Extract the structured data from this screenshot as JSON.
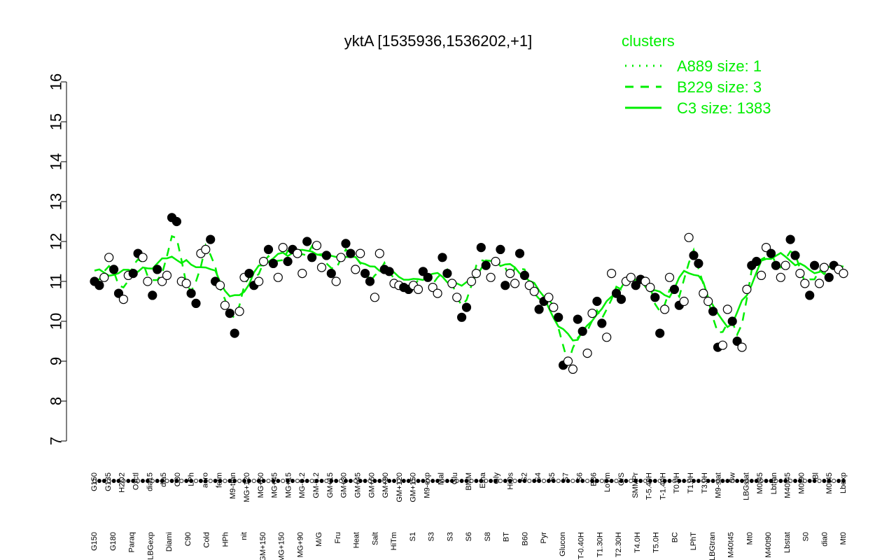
{
  "chart_data": {
    "type": "line",
    "title": "yktA [1535936,1536202,+1]",
    "ylim": [
      7,
      16
    ],
    "yticks": [
      7,
      8,
      9,
      10,
      11,
      12,
      13,
      14,
      15,
      16
    ],
    "grid": false,
    "legend": {
      "position": "top-right",
      "title": "clusters",
      "entries": [
        {
          "label": "A889 size: 1",
          "style": "dotted"
        },
        {
          "label": "B229 size: 3",
          "style": "dashed"
        },
        {
          "label": "C3 size: 1383",
          "style": "solid"
        }
      ]
    },
    "line_color": "#00ee00",
    "top_labels": [
      "G150",
      "G135",
      "H2O2",
      "Oxctl",
      "dia15",
      "dia5",
      "C30",
      "LPh",
      "aero",
      "ferm",
      "M9-tran",
      "MG+120",
      "MG+60",
      "MG+45",
      "MG+15",
      "MG-0.2",
      "GM-0.2",
      "GM+15",
      "GM+30",
      "GM+45",
      "GM+60",
      "GM+90",
      "GM+120",
      "GM+150",
      "M9-exp",
      "Mal",
      "Glu",
      "BMM",
      "Etha",
      "Gly",
      "HiOs",
      "S2",
      "S4",
      "S5",
      "S7",
      "S6",
      "B36",
      "LoTm",
      "G/S",
      "SMMPr",
      "T-5.40H",
      "T-1.40H",
      "T0.0H",
      "T1.0H",
      "T3.0H",
      "M9-stat",
      "Sw",
      "LBGstat",
      "M0t45",
      "Lbtran",
      "M40t45",
      "M0t90",
      "Bl",
      "M0t45",
      "Lbexp"
    ],
    "bottom_labels": [
      "G150",
      "G180",
      "Paraq",
      "LBGexp",
      "Diami",
      "C90",
      "Cold",
      "HPh",
      "nit",
      "GM+150",
      "MG+150",
      "MG+90",
      "M/G",
      "Fru",
      "Heat",
      "Salt",
      "HiTm",
      "S1",
      "S3",
      "S3",
      "S6",
      "S8",
      "BT",
      "B60",
      "Pyr",
      "Glucon",
      "T-0.40H",
      "T1.30H",
      "T2.30H",
      "T4.0H",
      "T5.0H",
      "BC",
      "LPhT",
      "LBGtran",
      "M40t45",
      "Mt0",
      "M40t90",
      "Lbstat",
      "S0",
      "dia0",
      "Mt0"
    ],
    "points": [
      {
        "x": 1,
        "y": 11.0
      },
      {
        "x": 2,
        "y": 10.9
      },
      {
        "x": 3,
        "y": 11.1
      },
      {
        "x": 4,
        "y": 11.6
      },
      {
        "x": 5,
        "y": 11.3
      },
      {
        "x": 6,
        "y": 10.7
      },
      {
        "x": 7,
        "y": 10.55
      },
      {
        "x": 8,
        "y": 11.15
      },
      {
        "x": 9,
        "y": 11.2
      },
      {
        "x": 10,
        "y": 11.7
      },
      {
        "x": 11,
        "y": 11.6
      },
      {
        "x": 12,
        "y": 11.0
      },
      {
        "x": 13,
        "y": 10.65
      },
      {
        "x": 14,
        "y": 11.3
      },
      {
        "x": 15,
        "y": 11.0
      },
      {
        "x": 16,
        "y": 11.15
      },
      {
        "x": 17,
        "y": 12.6
      },
      {
        "x": 18,
        "y": 12.5
      },
      {
        "x": 19,
        "y": 11.0
      },
      {
        "x": 20,
        "y": 10.95
      },
      {
        "x": 21,
        "y": 10.7
      },
      {
        "x": 22,
        "y": 10.45
      },
      {
        "x": 23,
        "y": 11.7
      },
      {
        "x": 24,
        "y": 11.8
      },
      {
        "x": 25,
        "y": 12.05
      },
      {
        "x": 26,
        "y": 11.0
      },
      {
        "x": 27,
        "y": 10.9
      },
      {
        "x": 28,
        "y": 10.4
      },
      {
        "x": 29,
        "y": 10.2
      },
      {
        "x": 30,
        "y": 9.7
      },
      {
        "x": 31,
        "y": 10.25
      },
      {
        "x": 32,
        "y": 11.1
      },
      {
        "x": 33,
        "y": 11.2
      },
      {
        "x": 34,
        "y": 10.9
      },
      {
        "x": 35,
        "y": 11.0
      },
      {
        "x": 36,
        "y": 11.5
      },
      {
        "x": 37,
        "y": 11.8
      },
      {
        "x": 38,
        "y": 11.45
      },
      {
        "x": 39,
        "y": 11.1
      },
      {
        "x": 40,
        "y": 11.85
      },
      {
        "x": 41,
        "y": 11.5
      },
      {
        "x": 42,
        "y": 11.8
      },
      {
        "x": 43,
        "y": 11.7
      },
      {
        "x": 44,
        "y": 11.2
      },
      {
        "x": 45,
        "y": 12.0
      },
      {
        "x": 46,
        "y": 11.6
      },
      {
        "x": 47,
        "y": 11.9
      },
      {
        "x": 48,
        "y": 11.35
      },
      {
        "x": 49,
        "y": 11.65
      },
      {
        "x": 50,
        "y": 11.2
      },
      {
        "x": 51,
        "y": 11.0
      },
      {
        "x": 52,
        "y": 11.6
      },
      {
        "x": 53,
        "y": 11.95
      },
      {
        "x": 54,
        "y": 11.7
      },
      {
        "x": 55,
        "y": 11.3
      },
      {
        "x": 56,
        "y": 11.7
      },
      {
        "x": 57,
        "y": 11.2
      },
      {
        "x": 58,
        "y": 11.0
      },
      {
        "x": 59,
        "y": 10.6
      },
      {
        "x": 60,
        "y": 11.7
      },
      {
        "x": 61,
        "y": 11.3
      },
      {
        "x": 62,
        "y": 11.25
      },
      {
        "x": 63,
        "y": 10.95
      },
      {
        "x": 64,
        "y": 10.9
      },
      {
        "x": 65,
        "y": 10.85
      },
      {
        "x": 66,
        "y": 10.8
      },
      {
        "x": 67,
        "y": 10.9
      },
      {
        "x": 68,
        "y": 10.8
      },
      {
        "x": 69,
        "y": 11.25
      },
      {
        "x": 70,
        "y": 11.1
      },
      {
        "x": 71,
        "y": 10.85
      },
      {
        "x": 72,
        "y": 10.7
      },
      {
        "x": 73,
        "y": 11.6
      },
      {
        "x": 74,
        "y": 11.2
      },
      {
        "x": 75,
        "y": 10.95
      },
      {
        "x": 76,
        "y": 10.6
      },
      {
        "x": 77,
        "y": 10.1
      },
      {
        "x": 78,
        "y": 10.35
      },
      {
        "x": 79,
        "y": 11.0
      },
      {
        "x": 80,
        "y": 11.2
      },
      {
        "x": 81,
        "y": 11.85
      },
      {
        "x": 82,
        "y": 11.4
      },
      {
        "x": 83,
        "y": 11.1
      },
      {
        "x": 84,
        "y": 11.5
      },
      {
        "x": 85,
        "y": 11.8
      },
      {
        "x": 86,
        "y": 10.9
      },
      {
        "x": 87,
        "y": 11.2
      },
      {
        "x": 88,
        "y": 10.95
      },
      {
        "x": 89,
        "y": 11.7
      },
      {
        "x": 90,
        "y": 11.15
      },
      {
        "x": 91,
        "y": 10.9
      },
      {
        "x": 92,
        "y": 10.75
      },
      {
        "x": 93,
        "y": 10.3
      },
      {
        "x": 94,
        "y": 10.5
      },
      {
        "x": 95,
        "y": 10.6
      },
      {
        "x": 96,
        "y": 10.35
      },
      {
        "x": 97,
        "y": 10.1
      },
      {
        "x": 98,
        "y": 8.9
      },
      {
        "x": 99,
        "y": 9.0
      },
      {
        "x": 100,
        "y": 8.8
      },
      {
        "x": 101,
        "y": 10.05
      },
      {
        "x": 102,
        "y": 9.75
      },
      {
        "x": 103,
        "y": 9.2
      },
      {
        "x": 104,
        "y": 10.2
      },
      {
        "x": 105,
        "y": 10.5
      },
      {
        "x": 106,
        "y": 9.95
      },
      {
        "x": 107,
        "y": 9.6
      },
      {
        "x": 108,
        "y": 11.2
      },
      {
        "x": 109,
        "y": 10.7
      },
      {
        "x": 110,
        "y": 10.55
      },
      {
        "x": 111,
        "y": 11.0
      },
      {
        "x": 112,
        "y": 11.1
      },
      {
        "x": 113,
        "y": 10.9
      },
      {
        "x": 114,
        "y": 11.05
      },
      {
        "x": 115,
        "y": 11.0
      },
      {
        "x": 116,
        "y": 10.85
      },
      {
        "x": 117,
        "y": 10.6
      },
      {
        "x": 118,
        "y": 9.7
      },
      {
        "x": 119,
        "y": 10.3
      },
      {
        "x": 120,
        "y": 11.1
      },
      {
        "x": 121,
        "y": 10.8
      },
      {
        "x": 122,
        "y": 10.4
      },
      {
        "x": 123,
        "y": 10.5
      },
      {
        "x": 124,
        "y": 12.1
      },
      {
        "x": 125,
        "y": 11.65
      },
      {
        "x": 126,
        "y": 11.45
      },
      {
        "x": 127,
        "y": 10.7
      },
      {
        "x": 128,
        "y": 10.5
      },
      {
        "x": 129,
        "y": 10.25
      },
      {
        "x": 130,
        "y": 9.35
      },
      {
        "x": 131,
        "y": 9.4
      },
      {
        "x": 132,
        "y": 10.3
      },
      {
        "x": 133,
        "y": 10.0
      },
      {
        "x": 134,
        "y": 9.5
      },
      {
        "x": 135,
        "y": 9.35
      },
      {
        "x": 136,
        "y": 10.8
      },
      {
        "x": 137,
        "y": 11.4
      },
      {
        "x": 138,
        "y": 11.5
      },
      {
        "x": 139,
        "y": 11.15
      },
      {
        "x": 140,
        "y": 11.85
      },
      {
        "x": 141,
        "y": 11.7
      },
      {
        "x": 142,
        "y": 11.4
      },
      {
        "x": 143,
        "y": 11.1
      },
      {
        "x": 144,
        "y": 11.4
      },
      {
        "x": 145,
        "y": 12.05
      },
      {
        "x": 146,
        "y": 11.65
      },
      {
        "x": 147,
        "y": 11.2
      },
      {
        "x": 148,
        "y": 10.95
      },
      {
        "x": 149,
        "y": 10.65
      },
      {
        "x": 150,
        "y": 11.4
      },
      {
        "x": 151,
        "y": 10.95
      },
      {
        "x": 152,
        "y": 11.35
      },
      {
        "x": 153,
        "y": 11.1
      },
      {
        "x": 154,
        "y": 11.4
      },
      {
        "x": 155,
        "y": 11.3
      },
      {
        "x": 156,
        "y": 11.2
      }
    ]
  }
}
